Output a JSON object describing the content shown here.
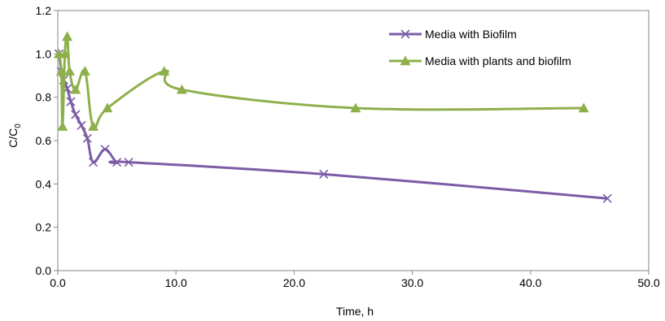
{
  "chart_data": {
    "type": "line",
    "title": "",
    "xlabel": "Time, h",
    "ylabel_main": "C/C",
    "ylabel_sub": "0",
    "xlim": [
      0,
      50
    ],
    "ylim": [
      0,
      1.2
    ],
    "x_ticks": [
      "0.0",
      "10.0",
      "20.0",
      "30.0",
      "40.0",
      "50.0"
    ],
    "y_ticks": [
      "0.0",
      "0.2",
      "0.4",
      "0.6",
      "0.8",
      "1.0",
      "1.2"
    ],
    "grid": false,
    "legend_position": "top-right",
    "series": [
      {
        "name": "Media with Biofilm",
        "color": "#7B5CA5",
        "marker": "x",
        "points": [
          [
            0.1,
            1.0
          ],
          [
            0.3,
            0.92
          ],
          [
            0.5,
            0.88
          ],
          [
            0.8,
            0.84
          ],
          [
            1.1,
            0.78
          ],
          [
            1.5,
            0.72
          ],
          [
            2.0,
            0.67
          ],
          [
            2.5,
            0.61
          ],
          [
            3.0,
            0.5
          ],
          [
            4.0,
            0.56
          ],
          [
            5.0,
            0.5
          ],
          [
            6.0,
            0.5
          ],
          [
            22.5,
            0.445
          ],
          [
            46.5,
            0.333
          ]
        ]
      },
      {
        "name": "Media with plants and biofilm",
        "color": "#8DB04B",
        "marker": "triangle",
        "points": [
          [
            0.1,
            1.0
          ],
          [
            0.3,
            0.92
          ],
          [
            0.4,
            0.665
          ],
          [
            0.6,
            1.0
          ],
          [
            0.8,
            1.08
          ],
          [
            1.0,
            0.92
          ],
          [
            1.5,
            0.835
          ],
          [
            2.3,
            0.92
          ],
          [
            3.0,
            0.665
          ],
          [
            4.2,
            0.75
          ],
          [
            9.0,
            0.92
          ],
          [
            10.5,
            0.835
          ],
          [
            25.2,
            0.75
          ],
          [
            44.5,
            0.75
          ]
        ]
      }
    ]
  }
}
